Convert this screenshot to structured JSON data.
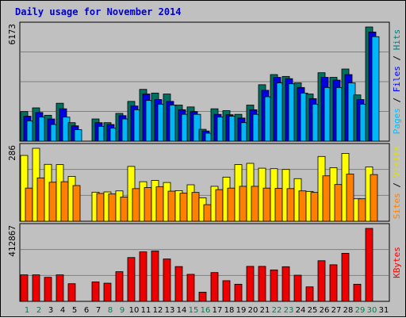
{
  "title": "Daily usage for November 2014",
  "chart_data": [
    {
      "type": "bar",
      "panel": "hits-files-pages",
      "categories": [
        "1",
        "2",
        "3",
        "4",
        "5",
        "6",
        "7",
        "8",
        "9",
        "10",
        "11",
        "12",
        "13",
        "14",
        "15",
        "16",
        "17",
        "18",
        "19",
        "20",
        "21",
        "22",
        "23",
        "24",
        "25",
        "26",
        "27",
        "28",
        "29",
        "30",
        "31"
      ],
      "max_label": "6173",
      "ylim": [
        0,
        6173
      ],
      "side_labels": [
        {
          "text": "Pages",
          "color": "#00c0ff"
        },
        {
          "text": " / ",
          "color": "#000000"
        },
        {
          "text": "Files",
          "color": "#0000ff"
        },
        {
          "text": " / ",
          "color": "#000000"
        },
        {
          "text": "Hits",
          "color": "#008080"
        }
      ],
      "series": [
        {
          "name": "Hits",
          "color": "#007060",
          "values": [
            1600,
            1800,
            1400,
            2050,
            1000,
            0,
            1200,
            1000,
            1500,
            2150,
            2800,
            2600,
            2550,
            1950,
            1850,
            640,
            1750,
            1650,
            1450,
            1950,
            3050,
            3600,
            3500,
            3150,
            2550,
            3700,
            3450,
            3900,
            2500,
            6173,
            0
          ]
        },
        {
          "name": "Files",
          "color": "#0000e0",
          "values": [
            1350,
            1550,
            1200,
            1750,
            830,
            0,
            1000,
            900,
            1380,
            1900,
            2550,
            2250,
            2150,
            1700,
            1600,
            550,
            1450,
            1430,
            1250,
            1700,
            2750,
            3450,
            3380,
            2900,
            2300,
            3450,
            3300,
            3600,
            2250,
            5900,
            0
          ]
        },
        {
          "name": "Pages",
          "color": "#00b8f8",
          "values": [
            1100,
            1300,
            900,
            1300,
            620,
            0,
            800,
            700,
            1200,
            1700,
            2200,
            2000,
            1950,
            1450,
            1450,
            430,
            1300,
            1350,
            1000,
            1450,
            2400,
            3150,
            3100,
            2600,
            2000,
            2900,
            2900,
            3150,
            2000,
            5650,
            0
          ]
        }
      ]
    },
    {
      "type": "bar",
      "panel": "visits-sites",
      "categories": [
        "1",
        "2",
        "3",
        "4",
        "5",
        "6",
        "7",
        "8",
        "9",
        "10",
        "11",
        "12",
        "13",
        "14",
        "15",
        "16",
        "17",
        "18",
        "19",
        "20",
        "21",
        "22",
        "23",
        "24",
        "25",
        "26",
        "27",
        "28",
        "29",
        "30",
        "31"
      ],
      "max_label": "286",
      "ylim": [
        0,
        286
      ],
      "side_labels": [
        {
          "text": "Sites",
          "color": "#ff8000"
        },
        {
          "text": " / ",
          "color": "#000000"
        },
        {
          "text": "Visits",
          "color": "#e0e000"
        }
      ],
      "series": [
        {
          "name": "Visits",
          "color": "#ffff00",
          "values": [
            258,
            286,
            223,
            222,
            176,
            0,
            114,
            115,
            119,
            215,
            155,
            160,
            152,
            120,
            143,
            92,
            137,
            173,
            222,
            227,
            208,
            206,
            203,
            167,
            117,
            254,
            210,
            266,
            88,
            213,
            0
          ]
        },
        {
          "name": "Sites",
          "color": "#ff8000",
          "values": [
            130,
            170,
            153,
            155,
            140,
            0,
            109,
            107,
            95,
            128,
            132,
            135,
            118,
            110,
            113,
            65,
            124,
            130,
            137,
            137,
            130,
            129,
            128,
            119,
            113,
            178,
            144,
            185,
            88,
            183,
            0
          ]
        }
      ]
    },
    {
      "type": "bar",
      "panel": "kbytes",
      "categories": [
        "1",
        "2",
        "3",
        "4",
        "5",
        "6",
        "7",
        "8",
        "9",
        "10",
        "11",
        "12",
        "13",
        "14",
        "15",
        "16",
        "17",
        "18",
        "19",
        "20",
        "21",
        "22",
        "23",
        "24",
        "25",
        "26",
        "27",
        "28",
        "29",
        "30",
        "31"
      ],
      "max_label": "412867",
      "ylim": [
        0,
        412867
      ],
      "side_labels": [
        {
          "text": "KBytes",
          "color": "#ff0000"
        }
      ],
      "series": [
        {
          "name": "KBytes",
          "color": "#ee0000",
          "values": [
            150000,
            150000,
            136000,
            150000,
            100000,
            0,
            110000,
            103000,
            168000,
            248000,
            280000,
            285000,
            240000,
            197000,
            153000,
            52000,
            163000,
            117000,
            97000,
            198000,
            198000,
            178000,
            196000,
            148000,
            82000,
            230000,
            207000,
            272000,
            97000,
            412867,
            0
          ]
        }
      ]
    }
  ],
  "weekend_days": [
    "1",
    "2",
    "8",
    "9",
    "15",
    "16",
    "22",
    "23",
    "29",
    "30"
  ],
  "colors": {
    "weekend": "#00804c",
    "weekday": "#000000",
    "plot_bg": "#c0c0c0",
    "grid": "#808080"
  }
}
